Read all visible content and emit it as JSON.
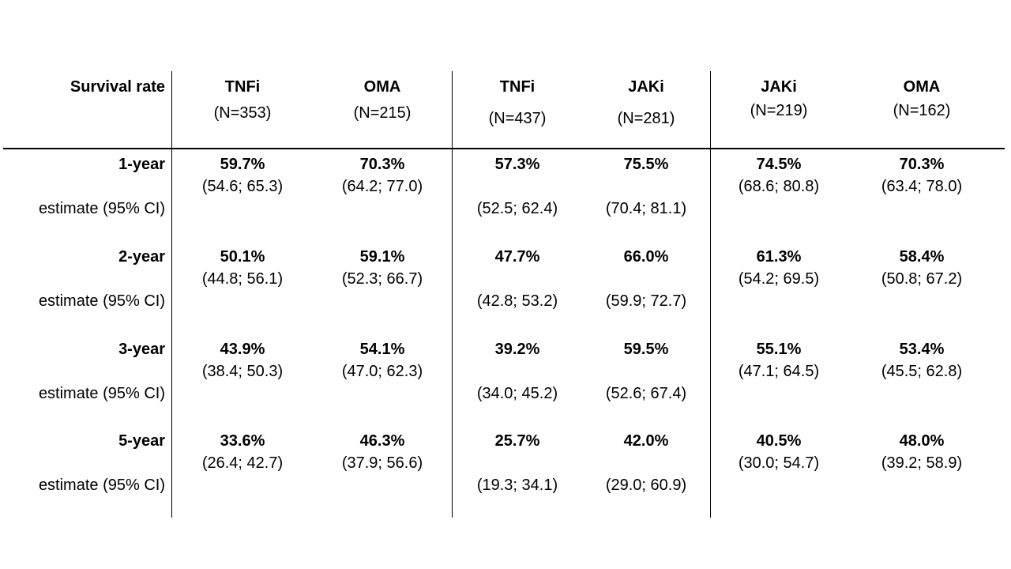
{
  "table": {
    "header": {
      "row_header": "Survival rate",
      "groups": [
        {
          "columns": [
            {
              "name": "TNFi",
              "n": "(N=353)"
            },
            {
              "name": "OMA",
              "n": "(N=215)"
            }
          ]
        },
        {
          "columns": [
            {
              "name": "TNFi",
              "n": "(N=437)"
            },
            {
              "name": "JAKi",
              "n": "(N=281)"
            }
          ]
        },
        {
          "columns": [
            {
              "name": "JAKi",
              "n": "(N=219)"
            },
            {
              "name": "OMA",
              "n": "(N=162)"
            }
          ]
        }
      ]
    },
    "estimate_label": "estimate (95% CI)",
    "rows": [
      {
        "label": "1-year",
        "cells": [
          {
            "pct": "59.7%",
            "ci": "(54.6; 65.3)"
          },
          {
            "pct": "70.3%",
            "ci": "(64.2; 77.0)"
          },
          {
            "pct": "57.3%",
            "ci": "(52.5; 62.4)"
          },
          {
            "pct": "75.5%",
            "ci": "(70.4; 81.1)"
          },
          {
            "pct": "74.5%",
            "ci": "(68.6; 80.8)"
          },
          {
            "pct": "70.3%",
            "ci": "(63.4; 78.0)"
          }
        ]
      },
      {
        "label": "2-year",
        "cells": [
          {
            "pct": "50.1%",
            "ci": "(44.8; 56.1)"
          },
          {
            "pct": "59.1%",
            "ci": "(52.3; 66.7)"
          },
          {
            "pct": "47.7%",
            "ci": "(42.8; 53.2)"
          },
          {
            "pct": "66.0%",
            "ci": "(59.9; 72.7)"
          },
          {
            "pct": "61.3%",
            "ci": "(54.2; 69.5)"
          },
          {
            "pct": "58.4%",
            "ci": "(50.8; 67.2)"
          }
        ]
      },
      {
        "label": "3-year",
        "cells": [
          {
            "pct": "43.9%",
            "ci": "(38.4; 50.3)"
          },
          {
            "pct": "54.1%",
            "ci": "(47.0; 62.3)"
          },
          {
            "pct": "39.2%",
            "ci": "(34.0; 45.2)"
          },
          {
            "pct": "59.5%",
            "ci": "(52.6; 67.4)"
          },
          {
            "pct": "55.1%",
            "ci": "(47.1; 64.5)"
          },
          {
            "pct": "53.4%",
            "ci": "(45.5; 62.8)"
          }
        ]
      },
      {
        "label": "5-year",
        "cells": [
          {
            "pct": "33.6%",
            "ci": "(26.4; 42.7)"
          },
          {
            "pct": "46.3%",
            "ci": "(37.9; 56.6)"
          },
          {
            "pct": "25.7%",
            "ci": "(19.3; 34.1)"
          },
          {
            "pct": "42.0%",
            "ci": "(29.0; 60.9)"
          },
          {
            "pct": "40.5%",
            "ci": "(30.0; 54.7)"
          },
          {
            "pct": "48.0%",
            "ci": "(39.2; 58.9)"
          }
        ]
      }
    ],
    "colors": {
      "text": "#000000",
      "line": "#000000",
      "background": "#ffffff"
    }
  }
}
